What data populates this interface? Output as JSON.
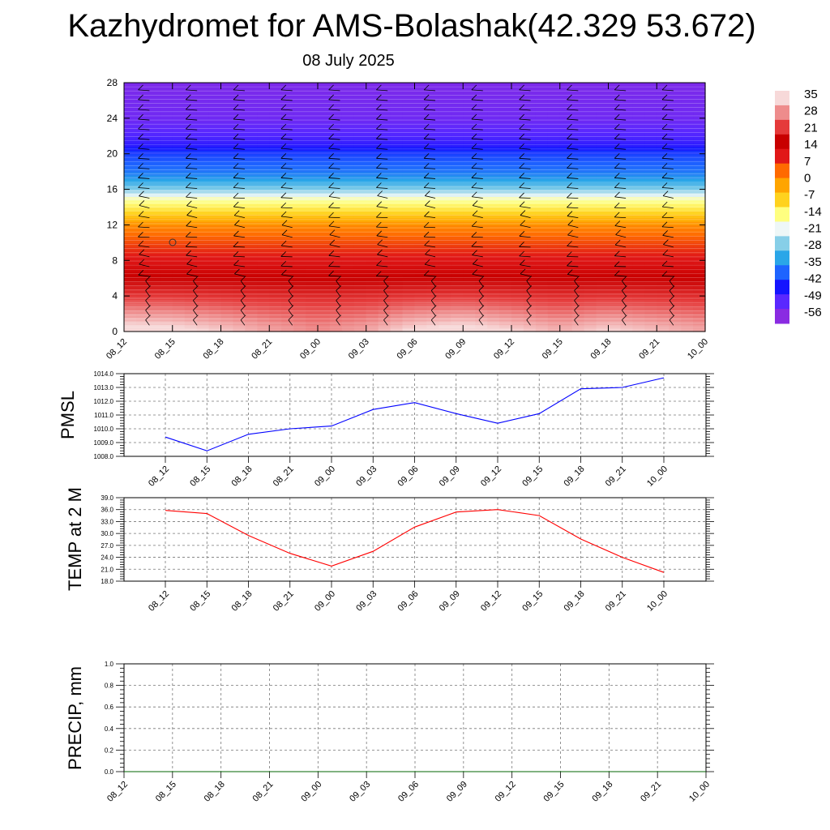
{
  "header": {
    "title": "Kazhydromet for AMS-Bolashak(42.329 53.672)",
    "date": "08 July 2025"
  },
  "colors": {
    "pmsl_line": "#0000ff",
    "temp_line": "#ff0000",
    "precip_line": "#006400",
    "grid": "#777777",
    "palette": [
      "#f7d9d9",
      "#ee8c8c",
      "#e53a3a",
      "#c80000",
      "#e11818",
      "#ff6a00",
      "#ffa500",
      "#ffd21e",
      "#ffff80",
      "#eef7f7",
      "#87cfe8",
      "#2aa6e8",
      "#1e64ff",
      "#1414ff",
      "#5a28ff",
      "#8a2be2"
    ]
  },
  "chart_data": [
    {
      "type": "heatmap",
      "subtype": "vertical cross-section with wind barbs",
      "x_ticks": [
        "08_12",
        "08_15",
        "08_18",
        "08_21",
        "09_00",
        "09_03",
        "09_06",
        "09_09",
        "09_12",
        "09_15",
        "09_18",
        "09_21",
        "10_00"
      ],
      "y_ticks": [
        0,
        4,
        8,
        12,
        16,
        20,
        24,
        28
      ],
      "ylim": [
        0,
        28
      ],
      "colorbar_labels": [
        "35",
        "28",
        "21",
        "14",
        "7",
        "0",
        "-7",
        "-14",
        "-21",
        "-28",
        "-35",
        "-42",
        "-49",
        "-56"
      ],
      "profile_levels": [
        0,
        4,
        6,
        8,
        10,
        12,
        13.5,
        15,
        16,
        17,
        18,
        20,
        21,
        22,
        24,
        28
      ],
      "profile_values": [
        32,
        25,
        21,
        15,
        10,
        3,
        -8,
        -14,
        -21,
        -28,
        -35,
        -42,
        -49,
        -52,
        -56,
        -58
      ],
      "surface_bump": [
        1,
        0.9,
        0.6,
        0.3,
        0.1,
        0.3,
        0.8,
        1,
        0.7,
        0.4,
        0.7,
        0.5,
        0.3
      ]
    },
    {
      "type": "line",
      "ylabel": "PMSL",
      "x": [
        "08_12",
        "08_15",
        "08_18",
        "08_21",
        "09_00",
        "09_03",
        "09_06",
        "09_09",
        "09_12",
        "09_15",
        "09_18",
        "09_21",
        "10_00"
      ],
      "values": [
        1009.4,
        1008.4,
        1009.6,
        1010.0,
        1010.2,
        1011.4,
        1011.9,
        1011.1,
        1010.4,
        1011.1,
        1012.9,
        1013.0,
        1013.7
      ],
      "ylim": [
        1008,
        1014
      ],
      "y_ticks": [
        "1008.0",
        "1009.0",
        "1010.0",
        "1011.0",
        "1012.0",
        "1013.0",
        "1014.0"
      ],
      "grid": true
    },
    {
      "type": "line",
      "ylabel": "TEMP at 2 M",
      "x": [
        "08_12",
        "08_15",
        "08_18",
        "08_21",
        "09_00",
        "09_03",
        "09_06",
        "09_09",
        "09_12",
        "09_15",
        "09_18",
        "09_21",
        "10_00"
      ],
      "values": [
        35.8,
        35.0,
        29.5,
        25.0,
        21.8,
        25.5,
        31.6,
        35.4,
        36.0,
        34.5,
        28.6,
        24.0,
        20.2
      ],
      "ylim": [
        18,
        39
      ],
      "y_ticks": [
        "18.0",
        "21.0",
        "24.0",
        "27.0",
        "30.0",
        "33.0",
        "36.0",
        "39.0"
      ],
      "grid": true
    },
    {
      "type": "line",
      "ylabel": "PRECIP, mm",
      "x": [
        "08_12",
        "08_15",
        "08_18",
        "08_21",
        "09_00",
        "09_03",
        "09_06",
        "09_09",
        "09_12",
        "09_15",
        "09_18",
        "09_21",
        "10_00"
      ],
      "values": [
        0,
        0,
        0,
        0,
        0,
        0,
        0,
        0,
        0,
        0,
        0,
        0,
        0
      ],
      "ylim": [
        0,
        1
      ],
      "y_ticks": [
        "0.0",
        "0.2",
        "0.4",
        "0.6",
        "0.8",
        "1.0"
      ],
      "grid": true
    }
  ]
}
